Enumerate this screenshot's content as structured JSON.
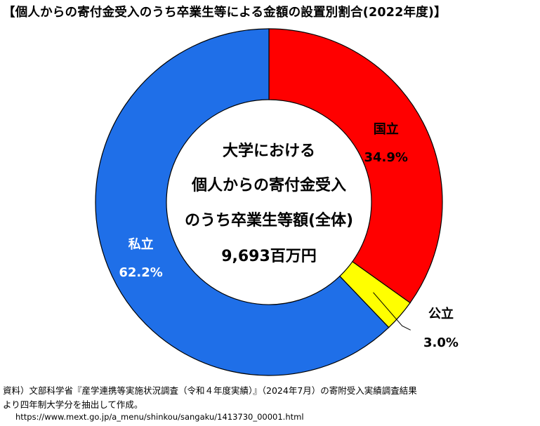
{
  "title": "【個人からの寄付金受入のうち卒業生等による金額の設置別割合(2022年度)】",
  "chart_data": {
    "type": "pie",
    "donut": true,
    "center_text": [
      "大学における",
      "個人からの寄付金受入",
      "のうち卒業生等額(全体)",
      "9,693百万円"
    ],
    "slices": [
      {
        "label": "国立",
        "value": 34.9,
        "value_label": "34.9%",
        "color": "#ff0000"
      },
      {
        "label": "公立",
        "value": 3.0,
        "value_label": "3.0%",
        "color": "#ffff00"
      },
      {
        "label": "私立",
        "value": 62.2,
        "value_label": "62.2%",
        "color": "#1f6fe8"
      }
    ],
    "legend": "none"
  },
  "source": {
    "line1": "資料）文部科学省『産学連携等実施状況調査（令和４年度実績）』（2024年7月）の寄附受入実績調査結果",
    "line2": "より四年制大学分を抽出して作成。",
    "url": "https://www.mext.go.jp/a_menu/shinkou/sangaku/1413730_00001.html"
  }
}
